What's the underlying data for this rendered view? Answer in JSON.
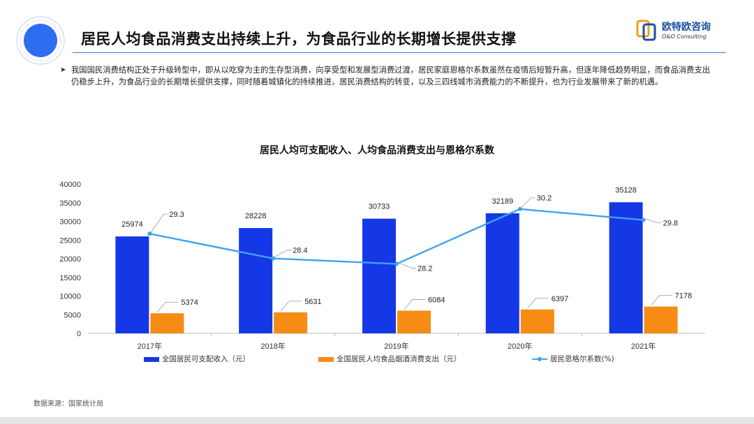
{
  "header": {
    "title": "居民人均食品消费支出持续上升，为食品行业的长期增长提供支撑",
    "logo_name": "欧特欧咨询",
    "logo_sub": "O&O Consulting"
  },
  "bullet": {
    "text": "我国国民消费结构正处于升级转型中，即从以吃穿为主的生存型消费，向享受型和发展型消费过渡，居民家庭恩格尔系数虽然在疫情后短暂升高，但逐年降低趋势明显，而食品消费支出仍稳步上升，为食品行业的长期增长提供支撑，同时随着城镇化的持续推进，居民消费结构的转变，以及三四线城市消费能力的不断提升，也为行业发展带来了新的机遇。"
  },
  "chart_data": {
    "type": "bar",
    "title": "居民人均可支配收入、人均食品消费支出与恩格尔系数",
    "categories": [
      "2017年",
      "2018年",
      "2019年",
      "2020年",
      "2021年"
    ],
    "series": [
      {
        "name": "全国居民可支配收入（元）",
        "type": "bar",
        "color": "#1538e6",
        "values": [
          25974,
          28228,
          30733,
          32189,
          35128
        ]
      },
      {
        "name": "全国居民人均食品烟酒消费支出（元）",
        "type": "bar",
        "color": "#f68c14",
        "values": [
          5374,
          5631,
          6084,
          6397,
          7178
        ]
      },
      {
        "name": "居民恩格尔系数(%)",
        "type": "line",
        "color": "#3fa2f2",
        "values": [
          29.3,
          28.4,
          28.2,
          30.2,
          29.8
        ],
        "labels": [
          "29.3",
          "28.4",
          "28.2",
          "30.2",
          "29.8"
        ]
      }
    ],
    "yticks": [
      "40000",
      "35000",
      "30000",
      "25000",
      "20000",
      "15000",
      "10000",
      "5000",
      "0"
    ],
    "ylim": [
      0,
      40000
    ],
    "line_range": [
      27.5,
      30.6
    ],
    "grid": false,
    "legend": "bottom"
  },
  "source": "数据来源：国家统计局"
}
